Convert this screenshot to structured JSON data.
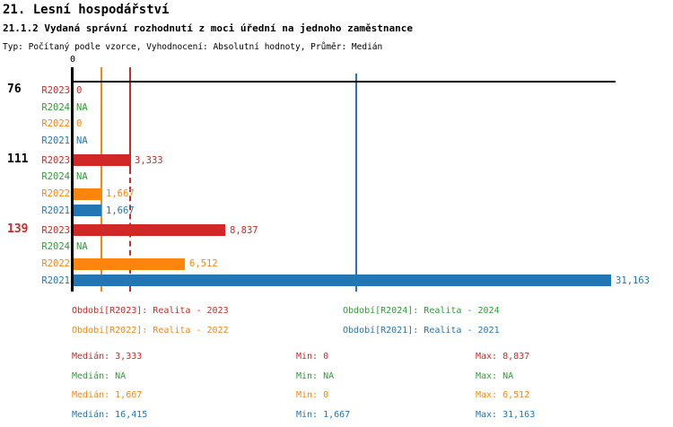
{
  "header": {
    "title1": "21. Lesní hospodářství",
    "title2": "21.1.2 Vydaná správní rozhodnutí z moci úřední na jednoho zaměstnance",
    "subtitle": "Typ: Počítaný podle vzorce, Vyhodnocení: Absolutní hodnoty, Průměr: Medián"
  },
  "colors": {
    "R2023": "#d02826",
    "R2024": "#2e9e33",
    "R2022": "#fd850e",
    "R2021": "#2276b4",
    "axis": "#000000",
    "highlight": "#d02826"
  },
  "chart_data": {
    "type": "bar",
    "orientation": "horizontal",
    "title": "21.1.2 Vydaná správní rozhodnutí z moci úřední na jednoho zaměstnance",
    "axis_origin_label": "0",
    "x_min": 0,
    "x_max": 31370,
    "grid": false,
    "series_order": [
      "R2023",
      "R2024",
      "R2022",
      "R2021"
    ],
    "groups": [
      {
        "label": "76",
        "label_color": "#000000",
        "rows": [
          {
            "series": "R2023",
            "value": 0,
            "display": "0"
          },
          {
            "series": "R2024",
            "value": null,
            "display": "NA"
          },
          {
            "series": "R2022",
            "value": 0,
            "display": "0"
          },
          {
            "series": "R2021",
            "value": null,
            "display": "NA"
          }
        ]
      },
      {
        "label": "111",
        "label_color": "#000000",
        "rows": [
          {
            "series": "R2023",
            "value": 3333,
            "display": "3,333"
          },
          {
            "series": "R2024",
            "value": null,
            "display": "NA"
          },
          {
            "series": "R2022",
            "value": 1667,
            "display": "1,667"
          },
          {
            "series": "R2021",
            "value": 1667,
            "display": "1,667"
          }
        ]
      },
      {
        "label": "139",
        "label_color": "#d02826",
        "rows": [
          {
            "series": "R2023",
            "value": 8837,
            "display": "8,837"
          },
          {
            "series": "R2024",
            "value": null,
            "display": "NA"
          },
          {
            "series": "R2022",
            "value": 6512,
            "display": "6,512"
          },
          {
            "series": "R2021",
            "value": 31163,
            "display": "31,163"
          }
        ]
      }
    ],
    "median_lines": [
      {
        "series": "R2022",
        "value": 1667,
        "style": "solid"
      },
      {
        "series": "R2023",
        "value": 3333,
        "style": "dashed"
      },
      {
        "series": "R2021",
        "value": 16415,
        "style": "solid"
      }
    ]
  },
  "legend": {
    "items": [
      {
        "series": "R2023",
        "label": "Období[R2023]: Realita - 2023"
      },
      {
        "series": "R2024",
        "label": "Období[R2024]: Realita - 2024"
      },
      {
        "series": "R2022",
        "label": "Období[R2022]: Realita - 2022"
      },
      {
        "series": "R2021",
        "label": "Období[R2021]: Realita - 2021"
      }
    ]
  },
  "stats": {
    "rows": [
      {
        "series": "R2023",
        "median": "Medián: 3,333",
        "min": "Min: 0",
        "max": "Max: 8,837"
      },
      {
        "series": "R2024",
        "median": "Medián: NA",
        "min": "Min: NA",
        "max": "Max: NA"
      },
      {
        "series": "R2022",
        "median": "Medián: 1,667",
        "min": "Min: 0",
        "max": "Max: 6,512"
      },
      {
        "series": "R2021",
        "median": "Medián: 16,415",
        "min": "Min: 1,667",
        "max": "Max: 31,163"
      }
    ]
  }
}
